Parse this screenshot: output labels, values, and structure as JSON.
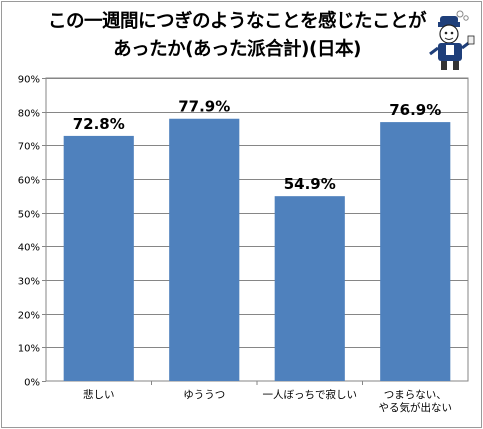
{
  "chart_data": {
    "type": "bar",
    "title_lines": [
      "この一週間につぎのようなことを感じたことが",
      "あったか(あった派合計)(日本)"
    ],
    "categories": [
      "悲しい",
      "ゆううつ",
      "一人ぼっちで寂しい",
      "つまらない、\nやる気が出ない"
    ],
    "values": [
      72.8,
      77.9,
      54.9,
      76.9
    ],
    "value_labels": [
      "72.8%",
      "77.9%",
      "54.9%",
      "76.9%"
    ],
    "yticks": [
      "0%",
      "10%",
      "20%",
      "30%",
      "40%",
      "50%",
      "60%",
      "70%",
      "80%",
      "90%"
    ],
    "ylim": [
      0,
      90
    ],
    "grid": true,
    "legend": "none",
    "bar_color": "#4f81bd"
  },
  "mascot_icon": "reporter-mascot-icon"
}
